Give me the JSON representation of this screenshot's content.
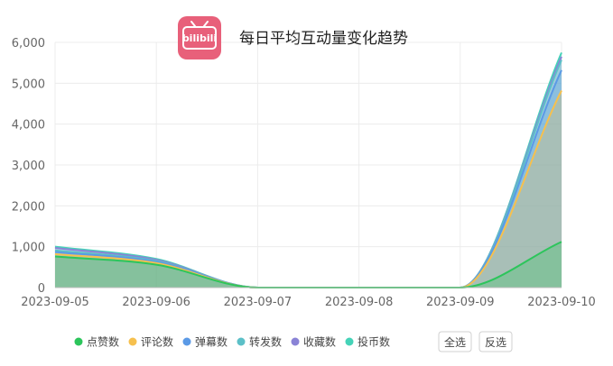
{
  "colors": {
    "点赞数": "#2cc55b",
    "评论数": "#f6c04e",
    "弹幕数": "#5b9ae6",
    "转发数": "#5cc0c8",
    "收藏数": "#8a83d6",
    "投币数": "#45d3b8",
    "logo": "#e8607a"
  },
  "logo": {
    "icon": "bilibili-tv-icon",
    "text": "bilibili"
  },
  "buttons": {
    "select_all": "全选",
    "invert_selection": "反选"
  },
  "chart_data": {
    "type": "area",
    "title": "每日平均互动量变化趋势",
    "x": [
      "2023-09-05",
      "2023-09-06",
      "2023-09-07",
      "2023-09-08",
      "2023-09-09",
      "2023-09-10"
    ],
    "ylim": [
      0,
      6000
    ],
    "yticks": [
      "0",
      "1,000",
      "2,000",
      "3,000",
      "4,000",
      "5,000",
      "6,000"
    ],
    "yticks_values": [
      0,
      1000,
      2000,
      3000,
      4000,
      5000,
      6000
    ],
    "grid": true,
    "stacked": true,
    "legend_position": "bottom",
    "series": [
      {
        "name": "点赞数",
        "values": [
          760,
          560,
          0,
          0,
          0,
          1120
        ]
      },
      {
        "name": "评论数",
        "values": [
          60,
          40,
          0,
          0,
          0,
          3700
        ]
      },
      {
        "name": "弹幕数",
        "values": [
          50,
          30,
          0,
          0,
          0,
          500
        ]
      },
      {
        "name": "转发数",
        "values": [
          40,
          20,
          0,
          0,
          0,
          250
        ]
      },
      {
        "name": "收藏数",
        "values": [
          60,
          30,
          0,
          0,
          0,
          80
        ]
      },
      {
        "name": "投币数",
        "values": [
          30,
          20,
          0,
          0,
          0,
          100
        ]
      }
    ]
  }
}
